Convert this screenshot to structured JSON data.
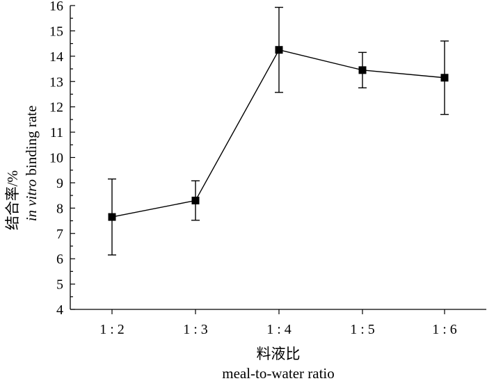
{
  "chart_data": {
    "type": "line",
    "categories": [
      "1 : 2",
      "1 : 3",
      "1 : 4",
      "1 : 5",
      "1 : 6"
    ],
    "series": [
      {
        "values": [
          7.65,
          8.3,
          14.25,
          13.45,
          13.15
        ],
        "errors": [
          1.5,
          0.78,
          1.68,
          0.7,
          1.45
        ]
      }
    ],
    "xlabel": [
      "料液比",
      "meal-to-water ratio"
    ],
    "ylabel_cn": "结合率/%",
    "ylabel_en_italic": "in vitro",
    "ylabel_en_rest": " binding rate",
    "ylim": [
      4,
      16
    ],
    "yticks": [
      4,
      5,
      6,
      7,
      8,
      9,
      10,
      11,
      12,
      13,
      14,
      15,
      16
    ],
    "marker": "filled-square",
    "grid": false,
    "legend": "none"
  }
}
